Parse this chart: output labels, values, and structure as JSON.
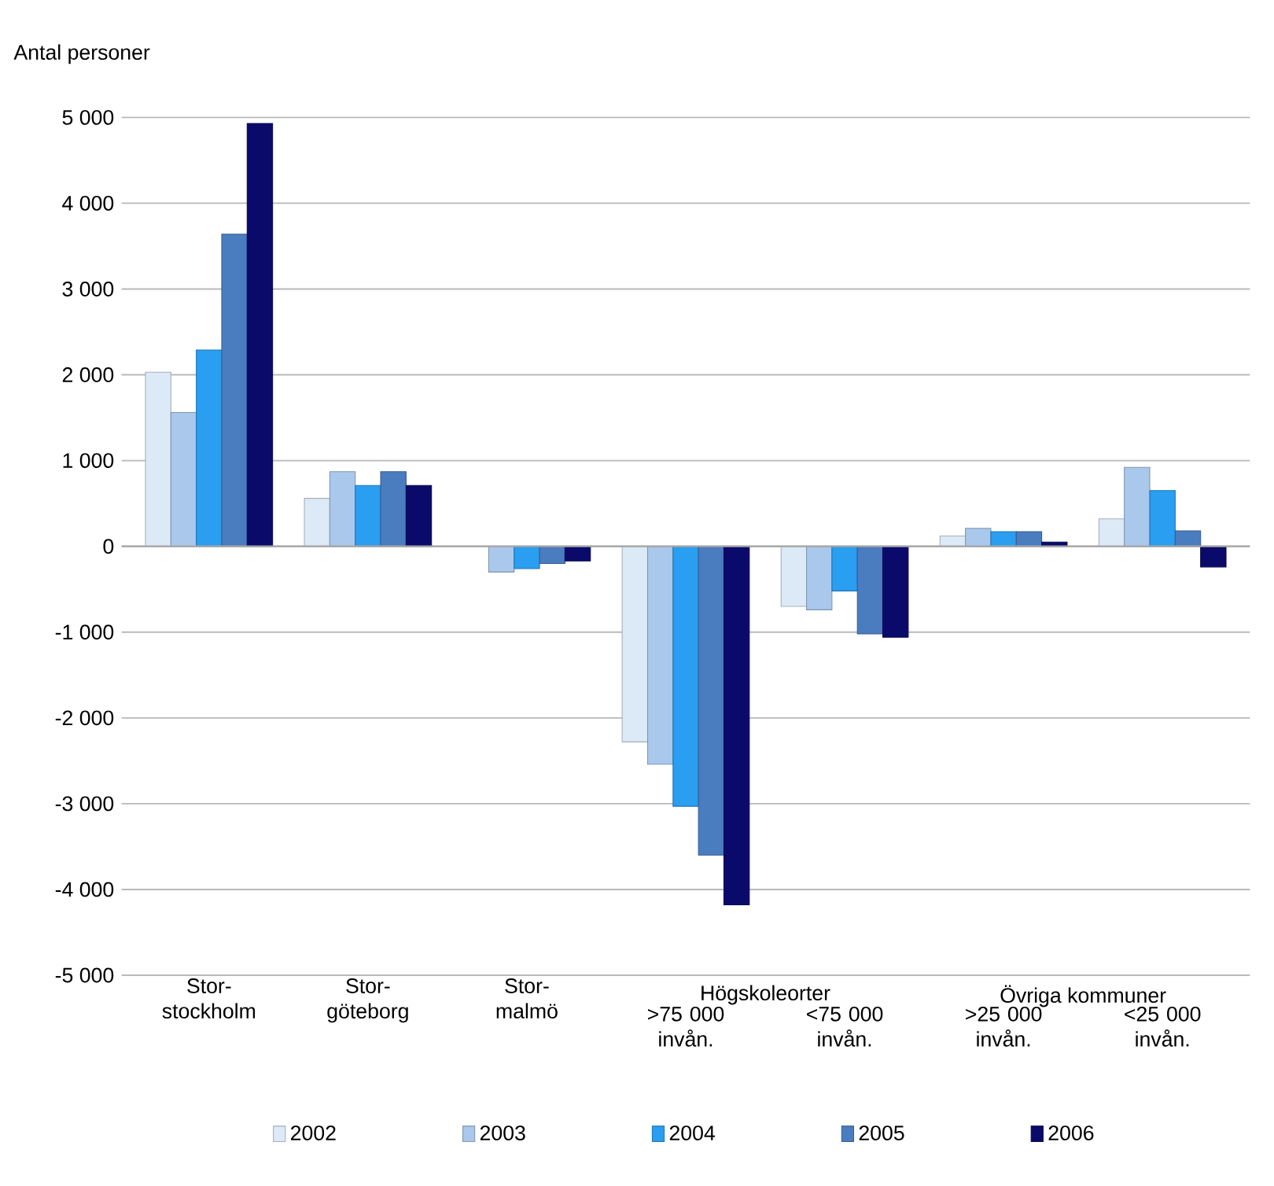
{
  "chart_data": {
    "type": "bar",
    "ylabel": "Antal personer",
    "categories": [
      "Stor-stockholm",
      "Stor-göteborg",
      "Stor-malmö",
      ">75 000 invån.",
      "<75 000 invån.",
      ">25 000 invån.",
      "<25 000 invån."
    ],
    "annotations": [
      "Högskoleorter",
      "Övriga kommuner"
    ],
    "series": [
      {
        "name": "2002",
        "color": "#dce9f7",
        "values": [
          2030,
          560,
          null,
          -2280,
          -700,
          120,
          320
        ]
      },
      {
        "name": "2003",
        "color": "#a9c8ec",
        "values": [
          1560,
          870,
          -300,
          -2540,
          -740,
          210,
          920
        ]
      },
      {
        "name": "2004",
        "color": "#2a9ef0",
        "values": [
          2290,
          710,
          -260,
          -3030,
          -520,
          170,
          650
        ]
      },
      {
        "name": "2005",
        "color": "#4a7cc0",
        "values": [
          3640,
          870,
          -200,
          -3600,
          -1020,
          170,
          180
        ]
      },
      {
        "name": "2006",
        "color": "#0a0a6a",
        "values": [
          4930,
          710,
          -170,
          -4180,
          -1060,
          50,
          -240
        ]
      }
    ],
    "ylim": [
      -5000,
      5000
    ],
    "yticks": [
      {
        "value": -5000,
        "label": "-5 000"
      },
      {
        "value": -4000,
        "label": "-4 000"
      },
      {
        "value": -3000,
        "label": "-3 000"
      },
      {
        "value": -2000,
        "label": "-2 000"
      },
      {
        "value": -1000,
        "label": "-1 000"
      },
      0,
      {
        "value": 1000,
        "label": "1 000"
      },
      {
        "value": 2000,
        "label": "2 000"
      },
      {
        "value": 3000,
        "label": "3 000"
      },
      {
        "value": 4000,
        "label": "4 000"
      },
      {
        "value": 5000,
        "label": "5 000"
      }
    ],
    "grid": "y",
    "legend": "bottom"
  }
}
